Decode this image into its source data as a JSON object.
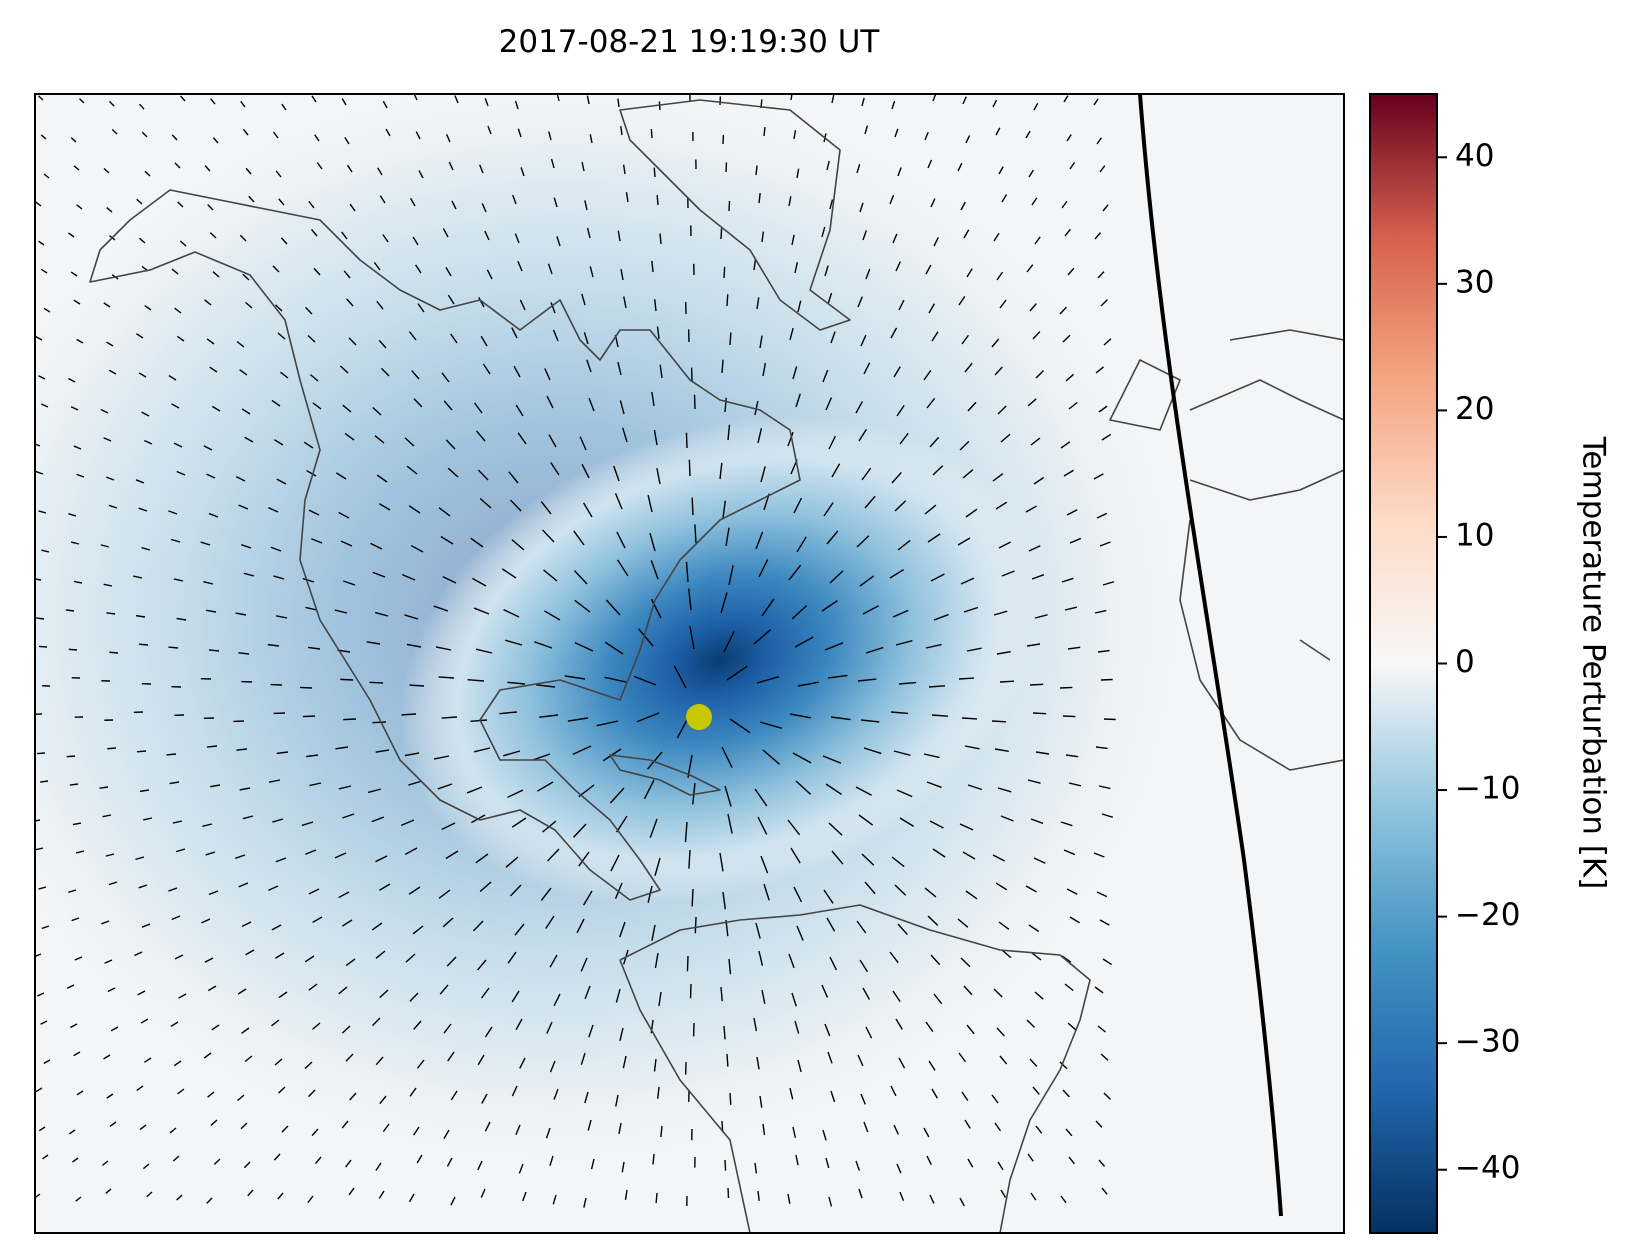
{
  "map": {
    "title": "2017-08-21 19:19:30 UT",
    "colorbar": {
      "label": "Temperature Perturbation [K]",
      "lim": [
        -45,
        45
      ],
      "ticks": [
        {
          "value": -40,
          "label": "−40"
        },
        {
          "value": -30,
          "label": "−30"
        },
        {
          "value": -20,
          "label": "−20"
        },
        {
          "value": -10,
          "label": "−10"
        },
        0,
        10,
        20,
        30,
        40
      ]
    }
  }
}
